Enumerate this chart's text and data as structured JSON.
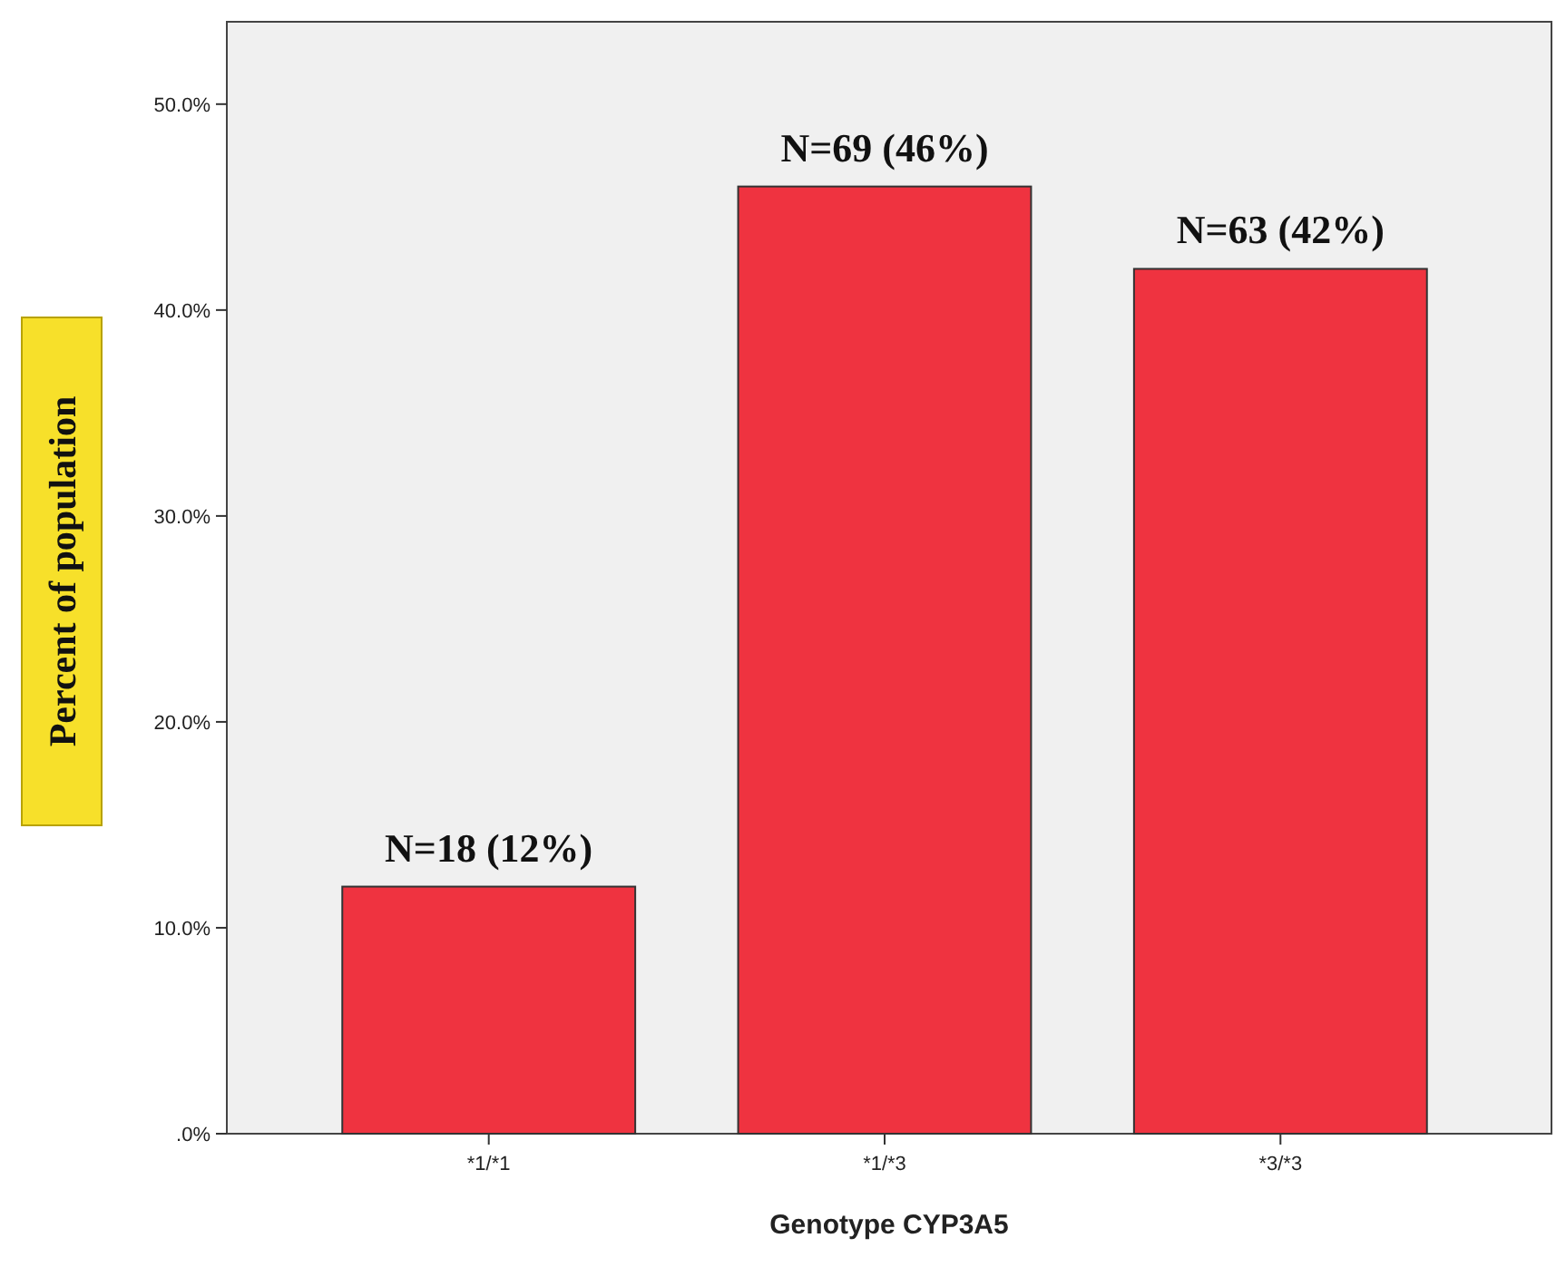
{
  "chart_data": {
    "type": "bar",
    "xlabel": "Genotype CYP3A5",
    "ylabel": "Percent of population",
    "categories": [
      "*1/*1",
      "*1/*3",
      "*3/*3"
    ],
    "values": [
      12,
      46,
      42
    ],
    "color": "#ef3340",
    "value_labels": [
      "N=18 (12%)",
      "N=69 (46%)",
      "N=63 (42%)"
    ],
    "ylim": [
      0,
      54
    ],
    "yticks": [
      {
        "value": 0,
        "label": ".0%"
      },
      {
        "value": 10,
        "label": "10.0%"
      },
      {
        "value": 20,
        "label": "20.0%"
      },
      {
        "value": 30,
        "label": "30.0%"
      },
      {
        "value": 40,
        "label": "40.0%"
      },
      {
        "value": 50,
        "label": "50.0%"
      }
    ],
    "grid": false
  }
}
